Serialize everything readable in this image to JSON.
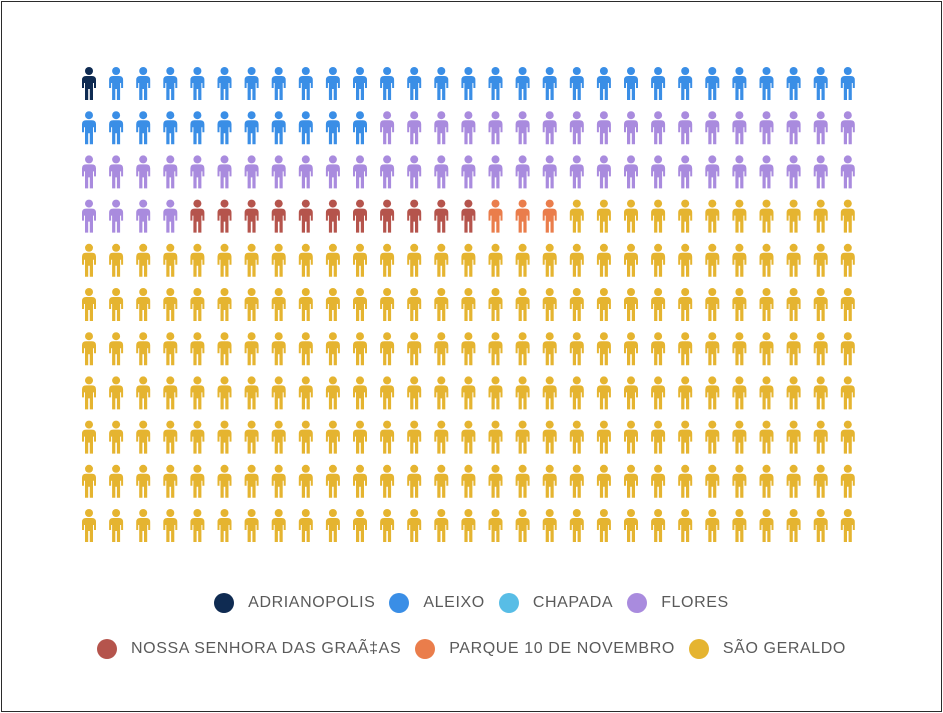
{
  "chart_data": {
    "type": "pictogram",
    "unit_icon": "person-icon",
    "grid": {
      "rows": 11,
      "cols": 29
    },
    "series": [
      {
        "name": "ADRIANOPOLIS",
        "count": 1,
        "color": "#0f2b52"
      },
      {
        "name": "ALEIXO",
        "count": 39,
        "color": "#3a8ee6"
      },
      {
        "name": "CHAPADA",
        "count": 0,
        "color": "#58bde6"
      },
      {
        "name": "FLORES",
        "count": 51,
        "color": "#a98bde"
      },
      {
        "name": "NOSSA SENHORA DAS GRAÃ‡AS",
        "count": 11,
        "color": "#b5544c"
      },
      {
        "name": "PARQUE 10 DE NOVEMBRO",
        "count": 3,
        "color": "#ea7d4b"
      },
      {
        "name": "SÃO GERALDO",
        "count": 214,
        "color": "#e5b430"
      }
    ],
    "legend_rows": [
      [
        0,
        1,
        2,
        3
      ],
      [
        4,
        5,
        6
      ]
    ]
  }
}
